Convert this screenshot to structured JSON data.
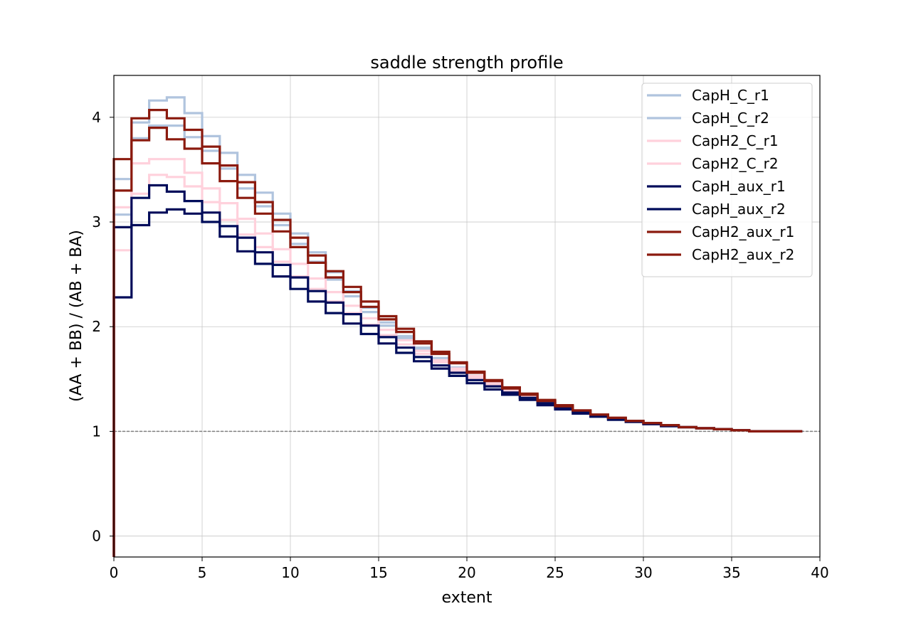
{
  "chart_data": {
    "type": "line",
    "step": "post",
    "title": "saddle strength profile",
    "xlabel": "extent",
    "ylabel": "(AA + BB) / (AB + BA)",
    "xlim": [
      0,
      40
    ],
    "ylim": [
      -0.2,
      4.4
    ],
    "xticks": [
      0,
      5,
      10,
      15,
      20,
      25,
      30,
      35,
      40
    ],
    "yticks": [
      0,
      1,
      2,
      3,
      4
    ],
    "grid": true,
    "legend_position": "top-right",
    "reference_line": {
      "y": 1,
      "style": "dashed",
      "color": "#808080"
    },
    "x": [
      0,
      1,
      2,
      3,
      4,
      5,
      6,
      7,
      8,
      9,
      10,
      11,
      12,
      13,
      14,
      15,
      16,
      17,
      18,
      19,
      20,
      21,
      22,
      23,
      24,
      25,
      26,
      27,
      28,
      29,
      30,
      31,
      32,
      33,
      34,
      35,
      36,
      37,
      38,
      39
    ],
    "series": [
      {
        "name": "CapH_C_r1",
        "color": "#b0c4de",
        "values": [
          3.41,
          3.95,
          4.16,
          4.19,
          4.04,
          3.82,
          3.66,
          3.45,
          3.28,
          3.08,
          2.89,
          2.71,
          2.52,
          2.34,
          2.18,
          2.04,
          1.91,
          1.8,
          1.7,
          1.61,
          1.53,
          1.46,
          1.4,
          1.34,
          1.29,
          1.24,
          1.2,
          1.16,
          1.13,
          1.1,
          1.08,
          1.06,
          1.04,
          1.03,
          1.02,
          1.01,
          1.0,
          1.0,
          1.0,
          1.0
        ]
      },
      {
        "name": "CapH_C_r2",
        "color": "#b0c4de",
        "values": [
          3.07,
          3.8,
          3.92,
          3.92,
          3.81,
          3.68,
          3.51,
          3.32,
          3.15,
          2.97,
          2.79,
          2.62,
          2.45,
          2.29,
          2.14,
          2.01,
          1.89,
          1.78,
          1.68,
          1.59,
          1.52,
          1.45,
          1.39,
          1.33,
          1.28,
          1.23,
          1.19,
          1.15,
          1.12,
          1.1,
          1.07,
          1.05,
          1.04,
          1.03,
          1.02,
          1.01,
          1.0,
          1.0,
          1.0,
          1.0
        ]
      },
      {
        "name": "CapH2_C_r1",
        "color": "#ffd1dc",
        "values": [
          3.14,
          3.56,
          3.6,
          3.6,
          3.47,
          3.32,
          3.18,
          3.03,
          2.89,
          2.74,
          2.6,
          2.46,
          2.33,
          2.2,
          2.08,
          1.97,
          1.87,
          1.77,
          1.68,
          1.6,
          1.53,
          1.46,
          1.4,
          1.34,
          1.29,
          1.24,
          1.2,
          1.16,
          1.13,
          1.1,
          1.08,
          1.06,
          1.04,
          1.03,
          1.02,
          1.01,
          1.0,
          1.0,
          1.0,
          1.0
        ]
      },
      {
        "name": "CapH2_C_r2",
        "color": "#ffd1dc",
        "values": [
          2.73,
          3.27,
          3.45,
          3.43,
          3.34,
          3.19,
          3.02,
          2.88,
          2.76,
          2.62,
          2.48,
          2.36,
          2.24,
          2.13,
          2.02,
          1.92,
          1.83,
          1.74,
          1.66,
          1.58,
          1.51,
          1.45,
          1.39,
          1.33,
          1.28,
          1.23,
          1.19,
          1.15,
          1.12,
          1.1,
          1.07,
          1.05,
          1.04,
          1.03,
          1.02,
          1.01,
          1.0,
          1.0,
          1.0,
          1.0
        ]
      },
      {
        "name": "CapH_aux_r1",
        "color": "#000c5a",
        "values": [
          2.95,
          3.23,
          3.35,
          3.29,
          3.2,
          3.09,
          2.96,
          2.85,
          2.71,
          2.59,
          2.47,
          2.34,
          2.23,
          2.12,
          2.01,
          1.9,
          1.8,
          1.71,
          1.63,
          1.56,
          1.49,
          1.43,
          1.37,
          1.32,
          1.27,
          1.23,
          1.19,
          1.15,
          1.12,
          1.1,
          1.07,
          1.05,
          1.04,
          1.03,
          1.02,
          1.01,
          1.0,
          1.0,
          1.0,
          1.0
        ]
      },
      {
        "name": "CapH_aux_r2",
        "color": "#000c5a",
        "values": [
          2.28,
          2.97,
          3.09,
          3.12,
          3.08,
          3.0,
          2.86,
          2.72,
          2.6,
          2.48,
          2.36,
          2.24,
          2.13,
          2.03,
          1.93,
          1.84,
          1.75,
          1.67,
          1.6,
          1.53,
          1.46,
          1.4,
          1.35,
          1.3,
          1.25,
          1.21,
          1.17,
          1.14,
          1.11,
          1.09,
          1.07,
          1.05,
          1.04,
          1.03,
          1.02,
          1.01,
          1.0,
          1.0,
          1.0,
          1.0
        ]
      },
      {
        "name": "CapH2_aux_r1",
        "color": "#8b1a0e",
        "values": [
          3.6,
          3.99,
          4.07,
          3.99,
          3.88,
          3.72,
          3.54,
          3.38,
          3.19,
          3.02,
          2.85,
          2.68,
          2.53,
          2.38,
          2.24,
          2.1,
          1.98,
          1.86,
          1.76,
          1.66,
          1.57,
          1.49,
          1.42,
          1.36,
          1.3,
          1.25,
          1.2,
          1.16,
          1.13,
          1.1,
          1.08,
          1.06,
          1.04,
          1.03,
          1.02,
          1.01,
          1.0,
          1.0,
          1.0,
          1.0
        ]
      },
      {
        "name": "CapH2_aux_r2",
        "color": "#8b1a0e",
        "values": [
          3.3,
          3.78,
          3.9,
          3.79,
          3.7,
          3.56,
          3.39,
          3.23,
          3.08,
          2.91,
          2.76,
          2.61,
          2.47,
          2.33,
          2.19,
          2.07,
          1.95,
          1.84,
          1.74,
          1.65,
          1.56,
          1.48,
          1.41,
          1.35,
          1.29,
          1.24,
          1.2,
          1.16,
          1.13,
          1.1,
          1.08,
          1.06,
          1.04,
          1.03,
          1.02,
          1.01,
          1.0,
          1.0,
          1.0,
          1.0
        ]
      }
    ]
  }
}
